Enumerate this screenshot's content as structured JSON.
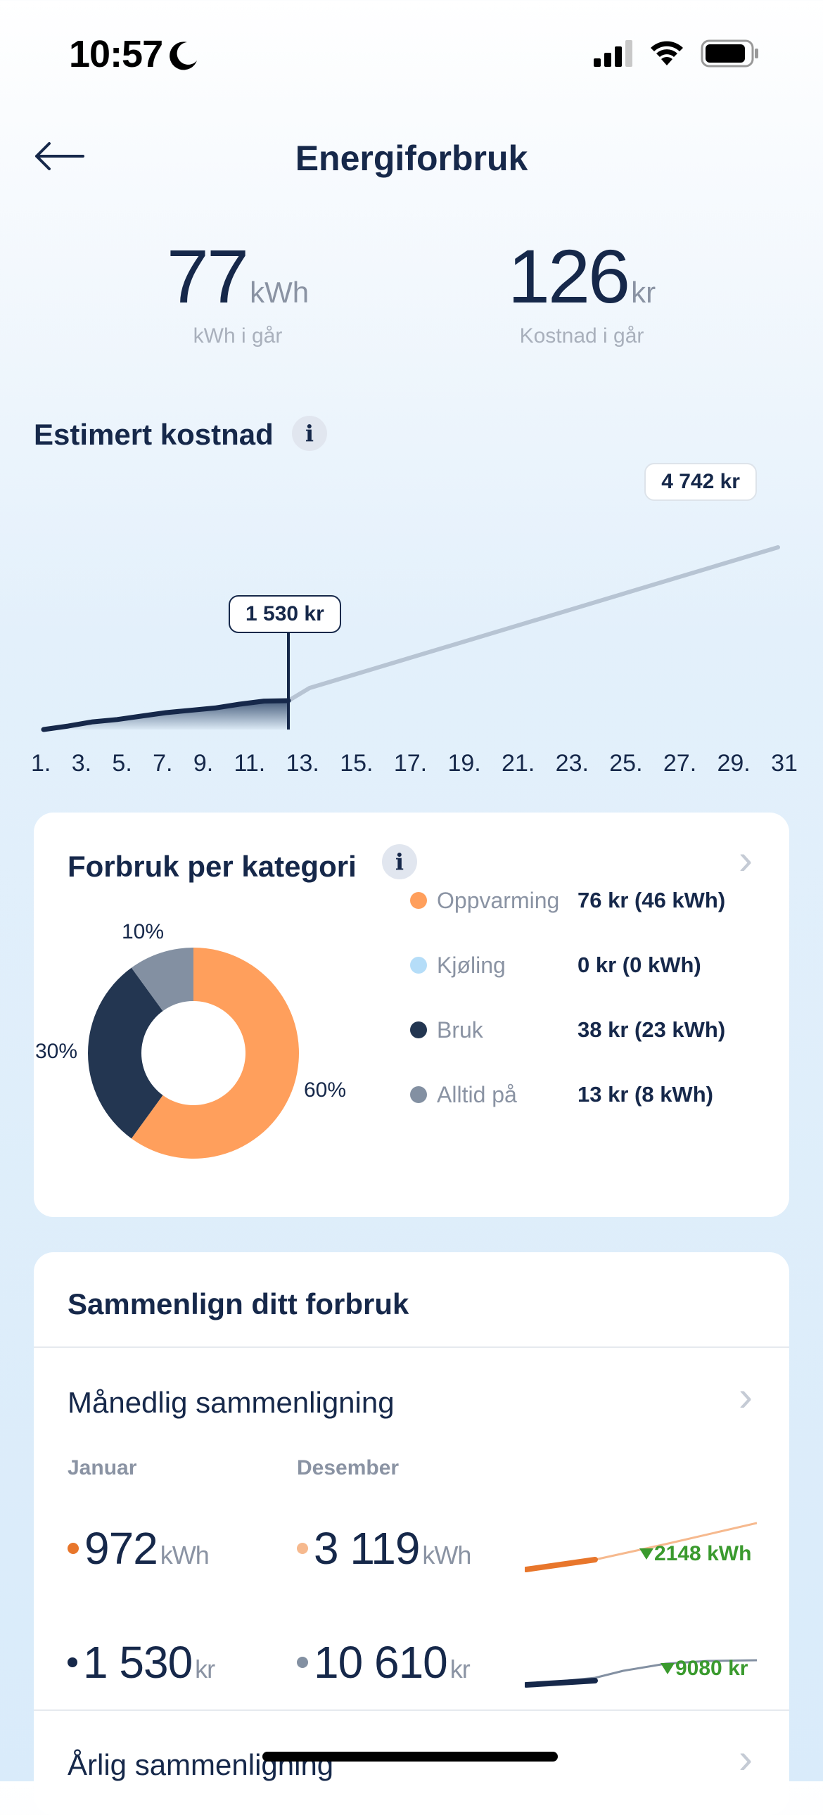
{
  "status_bar": {
    "time": "10:57"
  },
  "header": {
    "title": "Energiforbruk"
  },
  "stats": {
    "kwh": {
      "value": "77",
      "unit": "kWh",
      "caption": "kWh i går"
    },
    "cost": {
      "value": "126",
      "unit": "kr",
      "caption": "Kostnad i går"
    }
  },
  "estimated": {
    "title": "Estimert kostnad",
    "info": "i",
    "current_tag": "1 530 kr",
    "end_tag": "4 742 kr",
    "x_labels": [
      "1.",
      "3.",
      "5.",
      "7.",
      "9.",
      "11.",
      "13.",
      "15.",
      "17.",
      "19.",
      "21.",
      "23.",
      "25.",
      "27.",
      "29.",
      "31"
    ]
  },
  "chart_data": {
    "type": "line",
    "x_labels": [
      "1.",
      "3.",
      "5.",
      "7.",
      "9.",
      "11.",
      "13.",
      "15.",
      "17.",
      "19.",
      "21.",
      "23.",
      "25.",
      "27.",
      "29.",
      "31"
    ],
    "series": [
      {
        "values_days": [
          1,
          2,
          3,
          4,
          5,
          6,
          7,
          8,
          9,
          10,
          11
        ],
        "values_kr": [
          0,
          90,
          200,
          260,
          350,
          440,
          500,
          560,
          660,
          740,
          1530
        ]
      },
      {
        "values_days": [
          11,
          31
        ],
        "values_kr": [
          1530,
          4742
        ]
      }
    ],
    "annotations": [
      "1 530 kr",
      "4 742 kr"
    ]
  },
  "category": {
    "title": "Forbruk per kategori",
    "info": "i",
    "donut": [
      {
        "label": "Oppvarming",
        "percent": 60,
        "pct_label": "60%",
        "color": "#ff9f5c"
      },
      {
        "label": "Kjøling",
        "percent": 0,
        "pct_label": "",
        "color": "#b5ddf8"
      },
      {
        "label": "Bruk",
        "percent": 30,
        "pct_label": "30%",
        "color": "#233651"
      },
      {
        "label": "Alltid på",
        "percent": 10,
        "pct_label": "10%",
        "color": "#8390a2"
      }
    ],
    "legend": [
      {
        "name": "Oppvarming",
        "value": "76 kr (46 kWh)",
        "color": "#ff9f5c"
      },
      {
        "name": "Kjøling",
        "value": "0 kr (0 kWh)",
        "color": "#b5ddf8"
      },
      {
        "name": "Bruk",
        "value": "38 kr (23 kWh)",
        "color": "#233651"
      },
      {
        "name": "Alltid på",
        "value": "13 kr (8 kWh)",
        "color": "#8390a2"
      }
    ]
  },
  "compare": {
    "title": "Sammenlign ditt forbruk",
    "monthly": {
      "title": "Månedlig sammenligning",
      "current_label": "Januar",
      "previous_label": "Desember",
      "kwh_current": "972",
      "kwh_previous": "3 119",
      "kwh_unit": "kWh",
      "kwh_delta": "2148 kWh",
      "kr_current": "1 530",
      "kr_previous": "10 610",
      "kr_unit": "kr",
      "kr_delta": "9080 kr"
    },
    "yearly": {
      "title": "Årlig sammenligning"
    }
  },
  "colors": {
    "navy": "#16284a",
    "orange": "#e8762b",
    "light_orange": "#f6b98e",
    "green": "#3a9a2e",
    "grey": "#8390a2"
  }
}
